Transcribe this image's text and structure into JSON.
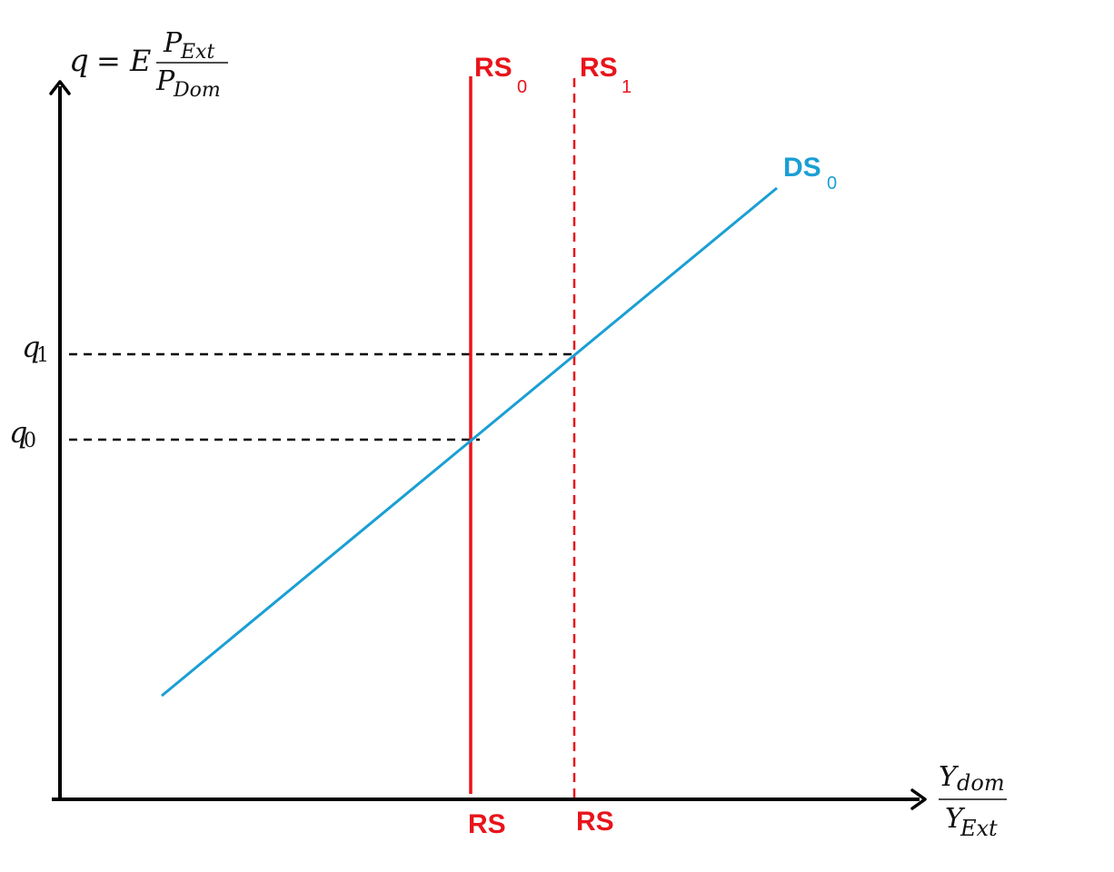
{
  "colors": {
    "axis": "#000000",
    "rs": "#e8141b",
    "ds": "#1a9fd4",
    "guide": "#000000"
  },
  "y_axis_label": {
    "q": "q",
    "equals": "=",
    "E": "E",
    "numerator_base": "P",
    "numerator_sub": "Ext",
    "denominator_base": "P",
    "denominator_sub": "Dom"
  },
  "x_axis_label": {
    "numerator_base": "Y",
    "numerator_sub": "dom",
    "denominator_base": "Y",
    "denominator_sub": "Ext"
  },
  "ticks": {
    "q1_base": "q",
    "q1_sub": "1",
    "q0_base": "q",
    "q0_sub": "0"
  },
  "curves": {
    "rs0": {
      "name": "RS",
      "sub": "0",
      "bottom_label": "RS",
      "style": "solid"
    },
    "rs1": {
      "name": "RS",
      "sub": "1",
      "bottom_label": "RS",
      "style": "dashed"
    },
    "ds0": {
      "name": "DS",
      "sub": "0",
      "style": "solid"
    }
  }
}
